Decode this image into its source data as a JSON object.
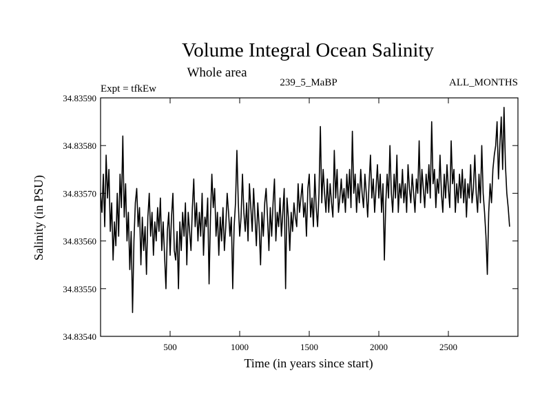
{
  "chart_data": {
    "type": "line",
    "title": "Volume Integral Ocean Salinity",
    "subtitle": "Whole area",
    "header_left": "Expt = tfkEw",
    "header_center": "239_5_MaBP",
    "header_right": "ALL_MONTHS",
    "xlabel": "Time (in years since start)",
    "ylabel": "Salinity (in PSU)",
    "xlim": [
      0,
      3000
    ],
    "ylim": [
      34.8354,
      34.8359
    ],
    "x_ticks": [
      500,
      1000,
      1500,
      2000,
      2500
    ],
    "x_tick_labels": [
      "500",
      "1000",
      "1500",
      "2000",
      "2500"
    ],
    "y_ticks": [
      34.8354,
      34.8355,
      34.8356,
      34.8357,
      34.8358,
      34.8359
    ],
    "y_tick_labels": [
      "34.83540",
      "34.83550",
      "34.83560",
      "34.83570",
      "34.83580",
      "34.83590"
    ],
    "grid": false,
    "series": [
      {
        "x_start": 0,
        "x_step": 10,
        "color": "#000000",
        "values": [
          34.8357,
          34.83566,
          34.83574,
          34.83563,
          34.83578,
          34.83569,
          34.83575,
          34.83562,
          34.83568,
          34.83556,
          34.83564,
          34.83559,
          34.8357,
          34.83561,
          34.83574,
          34.83567,
          34.83582,
          34.83565,
          34.83572,
          34.8356,
          34.83566,
          34.83554,
          34.83562,
          34.83545,
          34.8356,
          34.83568,
          34.83571,
          34.83563,
          34.83567,
          34.83555,
          34.83565,
          34.83558,
          34.83563,
          34.83553,
          34.83565,
          34.8357,
          34.83561,
          34.83566,
          34.83557,
          34.83564,
          34.8356,
          34.83567,
          34.83562,
          34.83569,
          34.83558,
          34.83564,
          34.83557,
          34.8355,
          34.83562,
          34.83566,
          34.83557,
          34.83565,
          34.8357,
          34.83558,
          34.83556,
          34.83562,
          34.8355,
          34.83564,
          34.83558,
          34.83566,
          34.83561,
          34.83568,
          34.83555,
          34.83566,
          34.83562,
          34.83558,
          34.83567,
          34.83573,
          34.83563,
          34.83568,
          34.8356,
          34.83566,
          34.83561,
          34.8357,
          34.83557,
          34.83565,
          34.83563,
          34.83569,
          34.83551,
          34.83565,
          34.83574,
          34.83567,
          34.83571,
          34.83561,
          34.83566,
          34.83557,
          34.83565,
          34.8356,
          34.83567,
          34.83558,
          34.83563,
          34.8357,
          34.83566,
          34.83561,
          34.83565,
          34.8355,
          34.83563,
          34.83568,
          34.83579,
          34.83568,
          34.83561,
          34.83565,
          34.83574,
          34.83566,
          34.83562,
          34.83568,
          34.8356,
          34.83572,
          34.83567,
          34.83562,
          34.83571,
          34.83565,
          34.83559,
          34.83568,
          34.83563,
          34.83555,
          34.83566,
          34.83561,
          34.83568,
          34.83571,
          34.83565,
          34.83558,
          34.83567,
          34.83561,
          34.83568,
          34.83573,
          34.8356,
          34.83566,
          34.83563,
          34.83569,
          34.83561,
          34.83566,
          34.83571,
          34.8355,
          34.83569,
          34.83565,
          34.83558,
          34.83566,
          34.83562,
          34.83568,
          34.83565,
          34.83563,
          34.83572,
          34.83566,
          34.83569,
          34.83572,
          34.83565,
          34.83568,
          34.83561,
          34.83571,
          34.83574,
          34.83565,
          34.83569,
          34.83563,
          34.83574,
          34.83567,
          34.83563,
          34.8357,
          34.83584,
          34.83568,
          34.83575,
          34.8357,
          34.83566,
          34.83573,
          34.83566,
          34.83572,
          34.83568,
          34.83565,
          34.83579,
          34.83569,
          34.83575,
          34.83566,
          34.83569,
          34.83573,
          34.83568,
          34.83571,
          34.83566,
          34.83574,
          34.83569,
          34.83575,
          34.83567,
          34.83583,
          34.8357,
          34.83574,
          34.83566,
          34.83572,
          34.83568,
          34.83575,
          34.8357,
          34.83567,
          34.83574,
          34.8357,
          34.83565,
          34.83572,
          34.83578,
          34.83569,
          34.83573,
          34.83566,
          34.83571,
          34.83576,
          34.83569,
          34.83574,
          34.83566,
          34.83572,
          34.83556,
          34.83568,
          34.83574,
          34.83569,
          34.8358,
          34.8357,
          34.83566,
          34.83574,
          34.83569,
          34.83578,
          34.83566,
          34.83572,
          34.83569,
          34.83575,
          34.83568,
          34.83572,
          34.83566,
          34.83576,
          34.83571,
          34.83568,
          34.83574,
          34.8357,
          34.83566,
          34.83573,
          34.8357,
          34.83581,
          34.83568,
          34.83575,
          34.83571,
          34.83567,
          34.83574,
          34.8357,
          34.83576,
          34.83569,
          34.83585,
          34.83572,
          34.83575,
          34.83567,
          34.83573,
          34.8357,
          34.83578,
          34.8357,
          34.83566,
          34.83574,
          34.83569,
          34.83576,
          34.83571,
          34.83567,
          34.83581,
          34.83572,
          34.83575,
          34.83566,
          34.83572,
          34.83568,
          34.83574,
          34.83569,
          34.83575,
          34.83568,
          34.83573,
          34.83565,
          34.83572,
          34.83569,
          34.83576,
          34.83568,
          34.83571,
          34.83578,
          34.8357,
          34.83566,
          34.83574,
          34.83568,
          34.8358,
          34.8357,
          34.83566,
          34.83561,
          34.83553,
          34.83566,
          34.83572,
          34.83568,
          34.83575,
          34.83578,
          34.8358,
          34.83585,
          34.83573,
          34.8358,
          34.83586,
          34.83575,
          34.83588,
          34.83576,
          34.8357,
          34.83567,
          34.83563
        ]
      }
    ]
  }
}
